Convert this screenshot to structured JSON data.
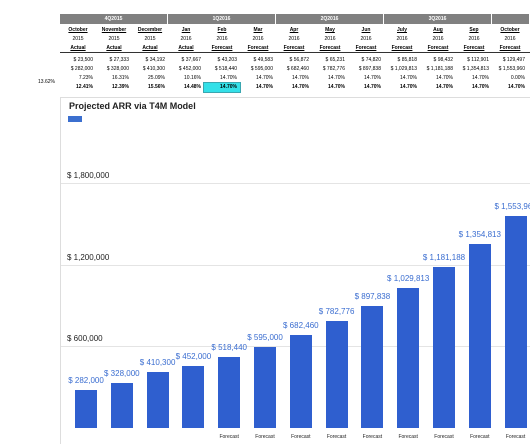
{
  "sheet": {
    "quarters": [
      "4Q2015",
      "1Q2016",
      "2Q2016",
      "3Q2016",
      ""
    ],
    "months": [
      "October",
      "November",
      "December",
      "Jan",
      "Feb",
      "Mar",
      "Apr",
      "May",
      "Jun",
      "July",
      "Aug",
      "Sep",
      "October"
    ],
    "years": [
      "2015",
      "2015",
      "2015",
      "2016",
      "2016",
      "2016",
      "2016",
      "2016",
      "2016",
      "2016",
      "2016",
      "2016",
      "2016"
    ],
    "types": [
      "Actual",
      "Actual",
      "Actual",
      "Actual",
      "Forecast",
      "Forecast",
      "Forecast",
      "Forecast",
      "Forecast",
      "Forecast",
      "Forecast",
      "Forecast",
      "Forecast"
    ],
    "row1": [
      "$ 23,500",
      "$ 27,333",
      "$ 34,192",
      "$ 37,667",
      "$ 43,203",
      "$ 49,583",
      "$ 56,872",
      "$ 65,231",
      "$ 74,820",
      "$ 85,818",
      "$ 98,432",
      "$ 112,901",
      "$ 129,497"
    ],
    "row2": [
      "$ 282,000",
      "$ 328,000",
      "$ 410,300",
      "$ 452,000",
      "$ 518,440",
      "$ 595,000",
      "$ 682,460",
      "$ 782,776",
      "$ 897,838",
      "$ 1,029,813",
      "$ 1,181,188",
      "$ 1,354,813",
      "$ 1,553,960"
    ],
    "row3": [
      "7.23%",
      "16.31%",
      "25.09%",
      "10.16%",
      "14.70%",
      "14.70%",
      "14.70%",
      "14.70%",
      "14.70%",
      "14.70%",
      "14.70%",
      "14.70%",
      "0.00%"
    ],
    "row4": [
      "12.41%",
      "12.39%",
      "15.56%",
      "14.48%",
      "14.70%",
      "14.70%",
      "14.70%",
      "14.70%",
      "14.70%",
      "14.70%",
      "14.70%",
      "14.70%",
      "14.70%"
    ],
    "row_label": "13.62%"
  },
  "chart_data": {
    "type": "bar",
    "title": "Projected ARR via T4M Model",
    "categories": [
      "October 2015",
      "November 2015",
      "December 2015",
      "Jan 2016",
      "Feb 2016",
      "Mar 2016",
      "Apr 2016",
      "May 2016",
      "Jun 2016",
      "July 2016",
      "Aug 2016",
      "Sep 2016",
      "October 2016"
    ],
    "values": [
      282000,
      328000,
      410300,
      452000,
      518440,
      595000,
      682460,
      782776,
      897838,
      1029813,
      1181188,
      1354813,
      1553960
    ],
    "value_labels": [
      "$ 282,000",
      "$ 328,000",
      "$ 410,300",
      "$ 452,000",
      "$ 518,440",
      "$ 595,000",
      "$ 682,460",
      "$ 782,776",
      "$ 897,838",
      "$ 1,029,813",
      "$ 1,181,188",
      "$ 1,354,813",
      "$ 1,553,960"
    ],
    "y_ticks": [
      600000,
      1200000,
      1800000
    ],
    "y_tick_labels": [
      "$ 600,000",
      "$ 1,200,000",
      "$ 1,800,000"
    ],
    "x_labels": [
      "",
      "",
      "",
      "",
      "Forecast",
      "Forecast",
      "Forecast",
      "Forecast",
      "Forecast",
      "Forecast",
      "Forecast",
      "Forecast",
      "Forecast"
    ],
    "bar_color": "#2f5fcf",
    "label_color": "#3a6dd0",
    "grid": true
  }
}
